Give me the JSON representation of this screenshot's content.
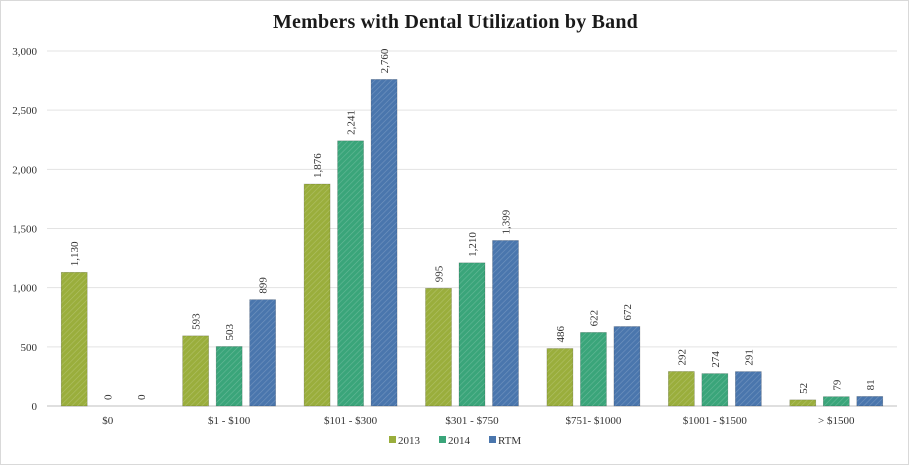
{
  "chart_data": {
    "type": "bar",
    "title": "Members with Dental Utilization by Band",
    "xlabel": "",
    "ylabel": "",
    "ylim": [
      0,
      3000
    ],
    "yticks": [
      "0",
      "500",
      "1,000",
      "1,500",
      "2,000",
      "2,500",
      "3,000"
    ],
    "ytick_values": [
      0,
      500,
      1000,
      1500,
      2000,
      2500,
      3000
    ],
    "categories": [
      "$0",
      "$1 - $100",
      "$101 - $300",
      "$301 - $750",
      "$751- $1000",
      "$1001 - $1500",
      "> $1500"
    ],
    "series": [
      {
        "name": "2013",
        "color": "#9aae3c",
        "values": [
          1130,
          593,
          1876,
          995,
          486,
          292,
          52
        ],
        "labels": [
          "1,130",
          "593",
          "1,876",
          "995",
          "486",
          "292",
          "52"
        ]
      },
      {
        "name": "2014",
        "color": "#3aa57a",
        "values": [
          0,
          503,
          2241,
          1210,
          622,
          274,
          79
        ],
        "labels": [
          "0",
          "503",
          "2,241",
          "1,210",
          "622",
          "274",
          "79"
        ]
      },
      {
        "name": "RTM",
        "color": "#4a76ad",
        "values": [
          0,
          899,
          2760,
          1399,
          672,
          291,
          81
        ],
        "labels": [
          "0",
          "899",
          "2,760",
          "1,399",
          "672",
          "291",
          "81"
        ]
      }
    ],
    "grid": true,
    "legend_position": "bottom"
  }
}
